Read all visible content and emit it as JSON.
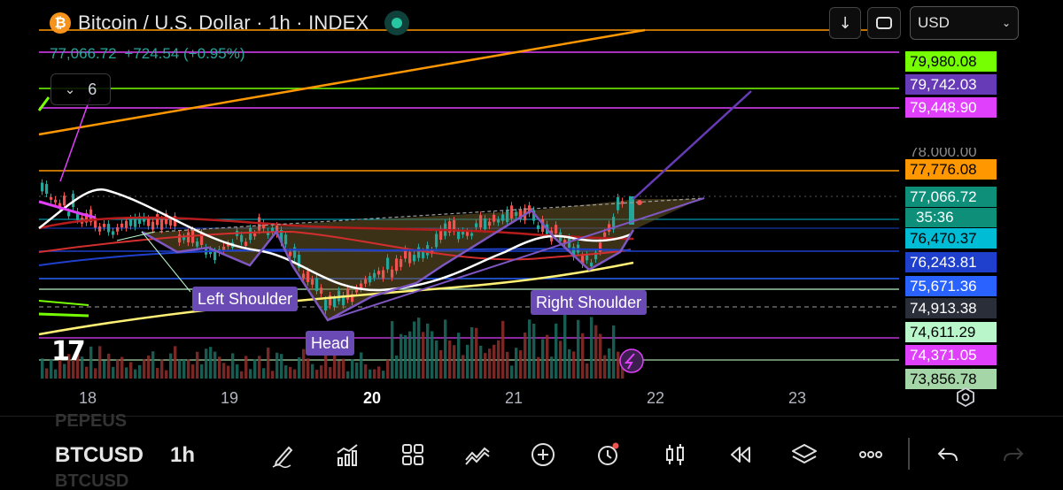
{
  "header": {
    "symbol_icon_glyph": "₿",
    "title": "Bitcoin / U.S. Dollar · 1h · INDEX",
    "last_price": "77,066.72",
    "change": "+724.54 (+0.95%)",
    "indicator_count": "6",
    "currency": "USD"
  },
  "price_labels": [
    {
      "text": "79,980.08",
      "bg": "#76ff03",
      "fg": "#000000"
    },
    {
      "text": "79,742.03",
      "bg": "#673ab7",
      "fg": "#ffffff"
    },
    {
      "text": "79,448.90",
      "bg": "#e040fb",
      "fg": "#ffffff"
    },
    {
      "text": "78,000.00",
      "bg": "#000000",
      "fg": "#8a8a8a"
    },
    {
      "text": "77,776.08",
      "bg": "#ff9800",
      "fg": "#000000"
    },
    {
      "text": "77,066.72",
      "bg": "#0e8f7a",
      "fg": "#ffffff"
    },
    {
      "text": "76,470.37",
      "bg": "#00bcd4",
      "fg": "#000000"
    },
    {
      "text": "76,243.81",
      "bg": "#1e40cc",
      "fg": "#ffffff"
    },
    {
      "text": "75,671.36",
      "bg": "#2962ff",
      "fg": "#ffffff"
    },
    {
      "text": "74,913.38",
      "bg": "#2a2e39",
      "fg": "#ffffff"
    },
    {
      "text": "74,611.29",
      "bg": "#b9f6ca",
      "fg": "#000000"
    },
    {
      "text": "74,371.05",
      "bg": "#e040fb",
      "fg": "#ffffff"
    },
    {
      "text": "73,856.78",
      "bg": "#a5d6a7",
      "fg": "#000000"
    }
  ],
  "countdown": "35:36",
  "annotations": {
    "left_shoulder": "Left Shoulder",
    "head": "Head",
    "right_shoulder": "Right Shoulder"
  },
  "x_axis": [
    "18",
    "19",
    "20",
    "21",
    "22",
    "23"
  ],
  "x_axis_bold": [
    "20"
  ],
  "toolbar": {
    "ghost_top": "PEPEUS",
    "symbol": "BTCUSD",
    "timeframe": "1h",
    "ghost_bottom": "BTCUSD",
    "tools": [
      "draw-icon",
      "indicators-icon",
      "layouts-icon",
      "pattern-icon",
      "add-icon",
      "alert-icon",
      "candle-type-icon",
      "replay-icon",
      "layers-icon",
      "more-icon",
      "undo-icon",
      "redo-icon"
    ]
  },
  "colors": {
    "up": "#26a69a",
    "down": "#ef5350",
    "pattern_fill": "#6b5a2a",
    "pattern_line": "#7e57c2"
  }
}
